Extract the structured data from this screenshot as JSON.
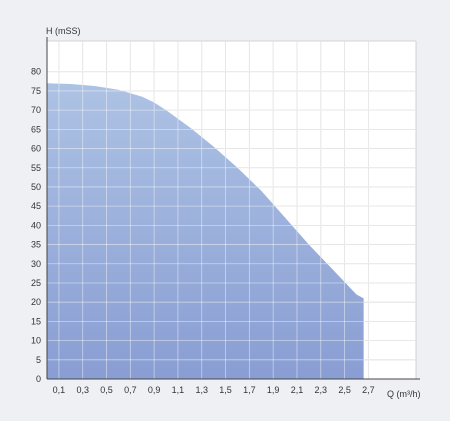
{
  "chart_data": {
    "type": "area",
    "title": "",
    "xlabel": "Q (m³/h)",
    "ylabel": "H (mSS)",
    "xlim": [
      0,
      3.1
    ],
    "ylim": [
      0,
      88
    ],
    "x_ticks": [
      "0,1",
      "0,3",
      "0,5",
      "0,7",
      "0,9",
      "1,1",
      "1,3",
      "1,5",
      "1,7",
      "1,9",
      "2,1",
      "2,3",
      "2,5",
      "2,7"
    ],
    "x_tick_values": [
      0.1,
      0.3,
      0.5,
      0.7,
      0.9,
      1.1,
      1.3,
      1.5,
      1.7,
      1.9,
      2.1,
      2.3,
      2.5,
      2.7
    ],
    "y_ticks": [
      "0",
      "5",
      "10",
      "15",
      "20",
      "25",
      "30",
      "35",
      "40",
      "45",
      "50",
      "55",
      "60",
      "65",
      "70",
      "75",
      "80"
    ],
    "y_tick_values": [
      0,
      5,
      10,
      15,
      20,
      25,
      30,
      35,
      40,
      45,
      50,
      55,
      60,
      65,
      70,
      75,
      80
    ],
    "grid": true,
    "series": [
      {
        "x": [
          0,
          0.2,
          0.4,
          0.6,
          0.8,
          0.9,
          1.0,
          1.2,
          1.4,
          1.6,
          1.8,
          2.0,
          2.2,
          2.4,
          2.6,
          2.66
        ],
        "y": [
          77,
          76.8,
          76.3,
          75.3,
          73.5,
          72,
          70,
          65.5,
          60.5,
          55,
          49,
          42,
          35,
          28.5,
          22,
          21
        ]
      }
    ],
    "colors": {
      "fill_top": "#a6bde1",
      "fill_bottom": "#7f95cf",
      "grid": "#c8c8c8",
      "axis": "#444444"
    }
  }
}
